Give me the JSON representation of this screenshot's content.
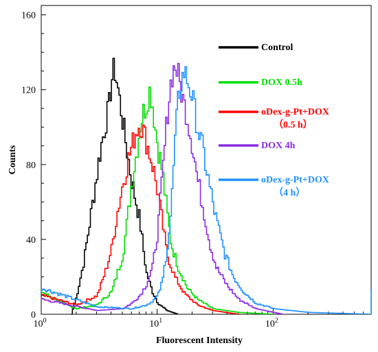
{
  "chart_data": {
    "type": "line",
    "title": "",
    "xlabel": "Fluorescent Intensity",
    "ylabel": "Counts",
    "x_scale": "log",
    "xlim": [
      1,
      700
    ],
    "ylim": [
      0,
      165
    ],
    "x_ticks": [
      {
        "value": 1,
        "base": "10",
        "exp": "0"
      },
      {
        "value": 10,
        "base": "10",
        "exp": "1"
      },
      {
        "value": 100,
        "base": "10",
        "exp": "2"
      }
    ],
    "y_ticks": [
      {
        "value": 0,
        "label": "0"
      },
      {
        "value": 40,
        "label": "40"
      },
      {
        "value": 80,
        "label": "80"
      },
      {
        "value": 120,
        "label": "120"
      },
      {
        "value": 160,
        "label": "160"
      }
    ],
    "grid": false,
    "legend_position": "top-right",
    "series": [
      {
        "name": "Control",
        "color": "#000000",
        "points": [
          [
            1.8,
            0
          ],
          [
            2.0,
            10
          ],
          [
            2.3,
            28
          ],
          [
            2.6,
            50
          ],
          [
            2.9,
            70
          ],
          [
            3.2,
            88
          ],
          [
            3.5,
            100
          ],
          [
            3.8,
            112
          ],
          [
            4.0,
            125
          ],
          [
            4.2,
            132
          ],
          [
            4.5,
            122
          ],
          [
            4.8,
            110
          ],
          [
            5.2,
            95
          ],
          [
            5.6,
            82
          ],
          [
            6.0,
            70
          ],
          [
            6.5,
            60
          ],
          [
            7.0,
            50
          ],
          [
            7.5,
            35
          ],
          [
            8.0,
            22
          ],
          [
            9.0,
            12
          ],
          [
            10.0,
            6
          ],
          [
            12.0,
            2
          ],
          [
            15.0,
            0
          ]
        ]
      },
      {
        "name": "DOX 0.5h",
        "color": "#00dd00",
        "points": [
          [
            1.0,
            12
          ],
          [
            1.5,
            6
          ],
          [
            2.0,
            3
          ],
          [
            3.0,
            5
          ],
          [
            4.0,
            12
          ],
          [
            5.0,
            32
          ],
          [
            5.5,
            52
          ],
          [
            6.0,
            72
          ],
          [
            6.5,
            85
          ],
          [
            7.0,
            100
          ],
          [
            7.5,
            108
          ],
          [
            8.0,
            112
          ],
          [
            8.5,
            120
          ],
          [
            9.0,
            112
          ],
          [
            9.5,
            100
          ],
          [
            10.0,
            90
          ],
          [
            11.0,
            75
          ],
          [
            12.0,
            55
          ],
          [
            13.0,
            38
          ],
          [
            15.0,
            25
          ],
          [
            18.0,
            14
          ],
          [
            22.0,
            8
          ],
          [
            30.0,
            3
          ],
          [
            50.0,
            1
          ],
          [
            100,
            0
          ]
        ]
      },
      {
        "name": "oDex-g-Pt+DOX\n（0.5 h）",
        "color": "#ff0000",
        "points": [
          [
            1.0,
            10
          ],
          [
            2.0,
            5
          ],
          [
            3.0,
            10
          ],
          [
            3.5,
            22
          ],
          [
            4.0,
            35
          ],
          [
            4.5,
            55
          ],
          [
            5.0,
            70
          ],
          [
            5.5,
            82
          ],
          [
            6.0,
            90
          ],
          [
            6.5,
            98
          ],
          [
            7.0,
            102
          ],
          [
            7.5,
            98
          ],
          [
            8.0,
            92
          ],
          [
            9.0,
            80
          ],
          [
            10.0,
            65
          ],
          [
            11.0,
            48
          ],
          [
            12.0,
            32
          ],
          [
            14.0,
            20
          ],
          [
            17.0,
            11
          ],
          [
            22.0,
            5
          ],
          [
            30.0,
            2
          ],
          [
            50.0,
            0
          ]
        ]
      },
      {
        "name": "DOX 4h",
        "color": "#8a2be2",
        "points": [
          [
            1.0,
            8
          ],
          [
            3.0,
            2
          ],
          [
            5.0,
            3
          ],
          [
            6.0,
            6
          ],
          [
            7.0,
            10
          ],
          [
            8.0,
            16
          ],
          [
            9.0,
            25
          ],
          [
            10.0,
            45
          ],
          [
            11.0,
            75
          ],
          [
            12.0,
            105
          ],
          [
            13.0,
            125
          ],
          [
            14.0,
            133
          ],
          [
            15.0,
            128
          ],
          [
            16.0,
            118
          ],
          [
            18.0,
            105
          ],
          [
            20.0,
            90
          ],
          [
            22.0,
            72
          ],
          [
            25.0,
            55
          ],
          [
            28.0,
            38
          ],
          [
            32.0,
            25
          ],
          [
            40.0,
            15
          ],
          [
            50.0,
            8
          ],
          [
            70.0,
            3
          ],
          [
            120,
            0
          ]
        ]
      },
      {
        "name": "oDex-g-Pt+DOX\n（4 h）",
        "color": "#1e90ff",
        "points": [
          [
            1.0,
            14
          ],
          [
            3.0,
            4
          ],
          [
            6.0,
            3
          ],
          [
            8.0,
            5
          ],
          [
            9.0,
            7
          ],
          [
            10.0,
            10
          ],
          [
            11.0,
            18
          ],
          [
            12.0,
            35
          ],
          [
            13.0,
            55
          ],
          [
            14.0,
            90
          ],
          [
            15.0,
            115
          ],
          [
            16.0,
            125
          ],
          [
            17.0,
            130
          ],
          [
            18.0,
            125
          ],
          [
            20.0,
            115
          ],
          [
            22.0,
            100
          ],
          [
            25.0,
            85
          ],
          [
            28.0,
            68
          ],
          [
            32.0,
            50
          ],
          [
            38.0,
            32
          ],
          [
            45.0,
            20
          ],
          [
            55.0,
            12
          ],
          [
            70.0,
            6
          ],
          [
            100,
            3
          ],
          [
            200,
            1
          ],
          [
            700,
            0
          ]
        ]
      }
    ]
  }
}
